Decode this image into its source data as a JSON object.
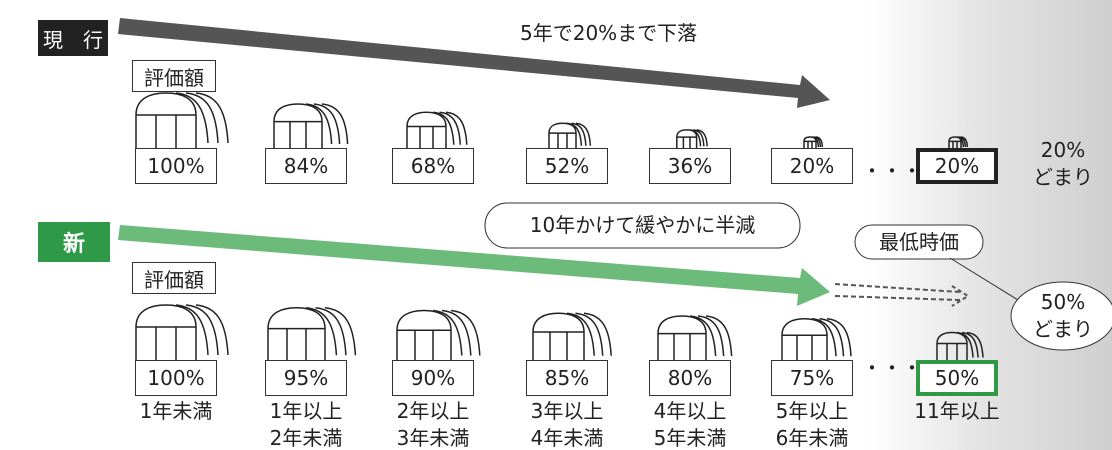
{
  "current": {
    "label": "現　行",
    "arrow_text": "5年で20%まで下落",
    "value_label": "評価額",
    "items": [
      "100%",
      "84%",
      "68%",
      "52%",
      "36%",
      "20%",
      "20%"
    ],
    "ellipsis": "・・・",
    "floor_note": [
      "20%",
      "どまり"
    ]
  },
  "new": {
    "label": "新",
    "arrow_text": "10年かけて緩やかに半減",
    "value_label": "評価額",
    "items": [
      "100%",
      "95%",
      "90%",
      "85%",
      "80%",
      "75%",
      "50%"
    ],
    "ellipsis": "・・・",
    "floor_callout": "最低時価",
    "floor_note": [
      "50%",
      "どまり"
    ],
    "ages": [
      [
        "1年未満"
      ],
      [
        "1年以上",
        "2年未満"
      ],
      [
        "2年以上",
        "3年未満"
      ],
      [
        "3年以上",
        "4年未満"
      ],
      [
        "4年以上",
        "5年未満"
      ],
      [
        "5年以上",
        "6年未満"
      ],
      [
        "11年以上"
      ]
    ]
  }
}
